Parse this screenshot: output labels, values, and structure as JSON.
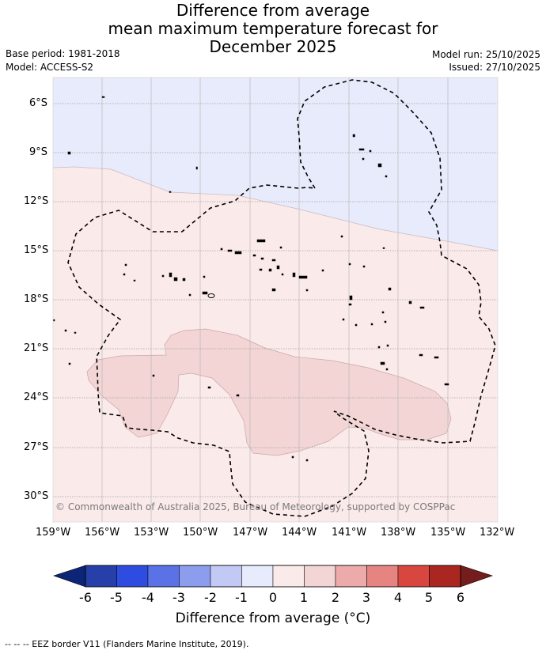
{
  "title": {
    "line1": "Difference from average",
    "line2": "mean maximum temperature forecast for",
    "line3": "December 2025"
  },
  "meta": {
    "base_period": "Base period: 1981-2018",
    "model": "Model: ACCESS-S2",
    "model_run": "Model run: 25/10/2025",
    "issued": "Issued: 27/10/2025"
  },
  "map": {
    "lat_labels": [
      "6°S",
      "9°S",
      "12°S",
      "15°S",
      "18°S",
      "21°S",
      "24°S",
      "27°S",
      "30°S"
    ],
    "lon_labels": [
      "159°W",
      "156°W",
      "153°W",
      "150°W",
      "147°W",
      "144°W",
      "141°W",
      "138°W",
      "135°W",
      "132°W"
    ],
    "copyright": "© Commonwealth of Australia 2025, Bureau of Meteorology, supported by COSPPac",
    "colors": {
      "anom_neg_0_1": "#e8ebfb",
      "anom_0_1": "#fbeaea",
      "anom_1_2": "#f3d5d5",
      "grid": "#a0a0a0",
      "coast": "#000000"
    }
  },
  "colorbar": {
    "ticks": [
      "-6",
      "-5",
      "-4",
      "-3",
      "-2",
      "-1",
      "0",
      "1",
      "2",
      "3",
      "4",
      "5",
      "6"
    ],
    "colors": [
      "#0c2576",
      "#273fa8",
      "#2e4de0",
      "#5a72e6",
      "#8c9dee",
      "#c3c9f5",
      "#e8ebfb",
      "#fbeaea",
      "#f3d5d5",
      "#ecaaaa",
      "#e68481",
      "#d8473f",
      "#aa2621",
      "#751c1c"
    ],
    "title": "Difference from average (°C)"
  },
  "footer": "--  --  -- EEZ border V11 (Flanders Marine Institute, 2019)."
}
